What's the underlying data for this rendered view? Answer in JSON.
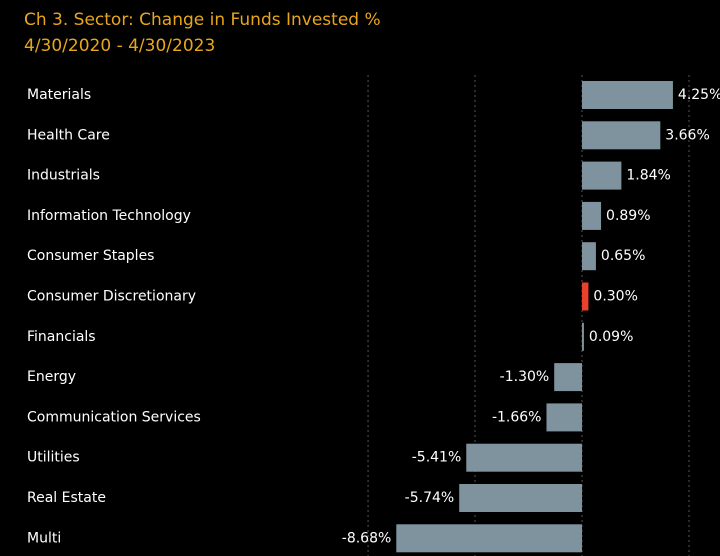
{
  "chart_data": {
    "type": "hbar",
    "title": "Ch 3.  Sector:  Change in Funds Invested %",
    "subtitle": "4/30/2020 - 4/30/2023",
    "categories": [
      "Materials",
      "Health Care",
      "Industrials",
      "Information Technology",
      "Consumer Staples",
      "Consumer Discretionary",
      "Financials",
      "Energy",
      "Communication Services",
      "Utilities",
      "Real Estate",
      "Multi"
    ],
    "values": [
      4.25,
      3.66,
      1.84,
      0.89,
      0.65,
      0.3,
      0.09,
      -1.3,
      -1.66,
      -5.41,
      -5.74,
      -8.68
    ],
    "value_labels": [
      "4.25%",
      "3.66%",
      "1.84%",
      "0.89%",
      "0.65%",
      "0.30%",
      "0.09%",
      "-1.30%",
      "-1.66%",
      "-5.41%",
      "-5.74%",
      "-8.68%"
    ],
    "colors": [
      "#7f939e",
      "#7f939e",
      "#7f939e",
      "#7f939e",
      "#7f939e",
      "#e8412c",
      "#7f939e",
      "#7f939e",
      "#7f939e",
      "#7f939e",
      "#7f939e",
      "#7f939e"
    ],
    "xlim": [
      -12.2,
      6.45
    ],
    "xticks": [
      -10,
      -5,
      0,
      5
    ],
    "grid": true
  }
}
